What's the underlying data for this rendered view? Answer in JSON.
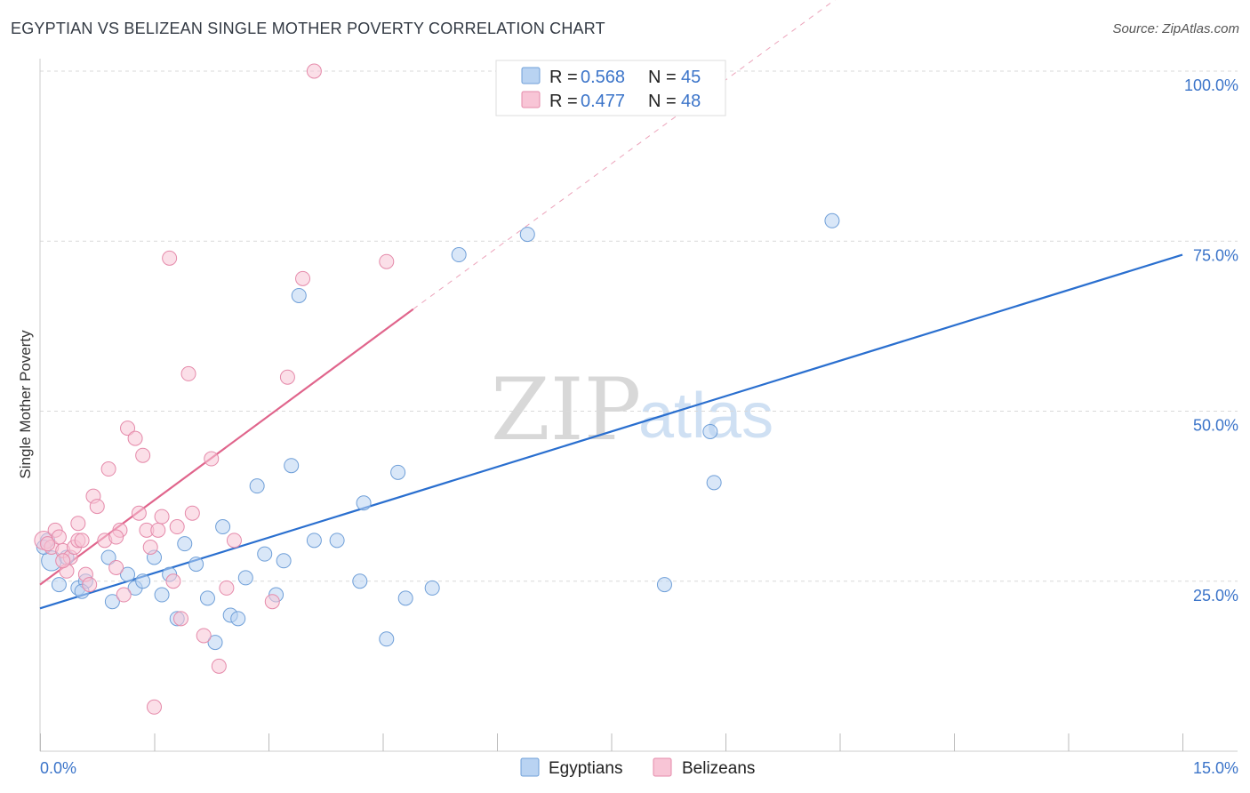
{
  "header": {
    "title": "EGYPTIAN VS BELIZEAN SINGLE MOTHER POVERTY CORRELATION CHART",
    "source": "Source: ZipAtlas.com"
  },
  "watermark": {
    "zip": "ZIP",
    "atlas": "atlas"
  },
  "colors": {
    "blue_fill": "#b9d3f2",
    "blue_stroke": "#6f9fd8",
    "blue_line": "#2a6fcf",
    "pink_fill": "#f8c5d6",
    "pink_stroke": "#e58aaa",
    "pink_line": "#e0658c",
    "grid": "#d9d9d9",
    "tick_text": "#3b74c9"
  },
  "legend": {
    "r_label": "R = ",
    "n_label": "N = ",
    "egyptians": {
      "r": "0.568",
      "n": "45"
    },
    "belizeans": {
      "r": "0.477",
      "n": "48"
    }
  },
  "bottom_legend": {
    "egyptians": "Egyptians",
    "belizeans": "Belizeans"
  },
  "chart_data": {
    "type": "scatter",
    "title": "EGYPTIAN VS BELIZEAN SINGLE MOTHER POVERTY CORRELATION CHART",
    "xlabel": "",
    "ylabel": "Single Mother Poverty",
    "xlim": [
      0,
      15
    ],
    "ylim": [
      0,
      100
    ],
    "x_tick_labels": [
      "0.0%",
      "15.0%"
    ],
    "y_ticks": [
      {
        "value": 25,
        "label": "25.0%"
      },
      {
        "value": 50,
        "label": "50.0%"
      },
      {
        "value": 75,
        "label": "75.0%"
      },
      {
        "value": 100,
        "label": "100.0%"
      }
    ],
    "series": [
      {
        "name": "Egyptians",
        "color": "blue",
        "trend": {
          "x0": 0,
          "y0": 21,
          "x1": 15,
          "y1": 73,
          "dashed_to": null
        },
        "points": [
          [
            0.1,
            31,
            1
          ],
          [
            0.15,
            28,
            1.4
          ],
          [
            0.35,
            28.5,
            1
          ],
          [
            0.25,
            24.5,
            1
          ],
          [
            0.5,
            24,
            1
          ],
          [
            0.6,
            25,
            1
          ],
          [
            0.55,
            23.5,
            1
          ],
          [
            0.9,
            28.5,
            1
          ],
          [
            0.95,
            22,
            1
          ],
          [
            1.15,
            26,
            1
          ],
          [
            1.25,
            24,
            1
          ],
          [
            1.35,
            25,
            1
          ],
          [
            1.5,
            28.5,
            1
          ],
          [
            1.6,
            23,
            1
          ],
          [
            1.7,
            26,
            1
          ],
          [
            1.8,
            19.5,
            1
          ],
          [
            1.9,
            30.5,
            1
          ],
          [
            2.05,
            27.5,
            1
          ],
          [
            2.2,
            22.5,
            1
          ],
          [
            2.3,
            16,
            1
          ],
          [
            2.4,
            33,
            1
          ],
          [
            2.5,
            20,
            1
          ],
          [
            2.6,
            19.5,
            1
          ],
          [
            2.7,
            25.5,
            1
          ],
          [
            2.85,
            39,
            1
          ],
          [
            2.95,
            29,
            1
          ],
          [
            3.1,
            23,
            1
          ],
          [
            3.2,
            28,
            1
          ],
          [
            3.3,
            42,
            1
          ],
          [
            3.4,
            67,
            1
          ],
          [
            3.6,
            31,
            1
          ],
          [
            3.9,
            31,
            1
          ],
          [
            4.2,
            25,
            1
          ],
          [
            4.25,
            36.5,
            1
          ],
          [
            4.55,
            16.5,
            1
          ],
          [
            4.7,
            41,
            1
          ],
          [
            4.8,
            22.5,
            1
          ],
          [
            5.15,
            24,
            1
          ],
          [
            5.5,
            73,
            1
          ],
          [
            6.4,
            76,
            1
          ],
          [
            8.2,
            24.5,
            1
          ],
          [
            8.8,
            47,
            1
          ],
          [
            8.85,
            39.5,
            1
          ],
          [
            10.4,
            78,
            1
          ],
          [
            0.05,
            30,
            1
          ]
        ]
      },
      {
        "name": "Belizeans",
        "color": "pink",
        "trend": {
          "x0": 0,
          "y0": 24.5,
          "x1": 4.9,
          "y1": 65,
          "dashed_to": [
            10.5,
            111
          ]
        },
        "points": [
          [
            0.05,
            31,
            1.3
          ],
          [
            0.15,
            30,
            1
          ],
          [
            0.2,
            32.5,
            1
          ],
          [
            0.3,
            29.5,
            1
          ],
          [
            0.35,
            26.5,
            1
          ],
          [
            0.4,
            28.5,
            1
          ],
          [
            0.45,
            30,
            1
          ],
          [
            0.5,
            31,
            1
          ],
          [
            0.5,
            33.5,
            1
          ],
          [
            0.6,
            26,
            1
          ],
          [
            0.65,
            24.5,
            1
          ],
          [
            0.7,
            37.5,
            1
          ],
          [
            0.75,
            36,
            1
          ],
          [
            0.85,
            31,
            1
          ],
          [
            0.9,
            41.5,
            1
          ],
          [
            1.0,
            27,
            1
          ],
          [
            1.05,
            32.5,
            1
          ],
          [
            1.1,
            23,
            1
          ],
          [
            1.15,
            47.5,
            1
          ],
          [
            1.25,
            46,
            1
          ],
          [
            1.3,
            35,
            1
          ],
          [
            1.35,
            43.5,
            1
          ],
          [
            1.4,
            32.5,
            1
          ],
          [
            1.45,
            30,
            1
          ],
          [
            1.5,
            6.5,
            1
          ],
          [
            1.55,
            32.5,
            1
          ],
          [
            1.6,
            34.5,
            1
          ],
          [
            1.7,
            72.5,
            1
          ],
          [
            1.75,
            25,
            1
          ],
          [
            1.8,
            33,
            1
          ],
          [
            1.85,
            19.5,
            1
          ],
          [
            1.95,
            55.5,
            1
          ],
          [
            2.0,
            35,
            1
          ],
          [
            2.15,
            17,
            1
          ],
          [
            2.25,
            43,
            1
          ],
          [
            2.35,
            12.5,
            1
          ],
          [
            2.45,
            24,
            1
          ],
          [
            2.55,
            31,
            1
          ],
          [
            3.05,
            22,
            1
          ],
          [
            3.25,
            55,
            1
          ],
          [
            3.45,
            69.5,
            1
          ],
          [
            3.6,
            100,
            1
          ],
          [
            4.55,
            72,
            1
          ],
          [
            0.25,
            31.5,
            1
          ],
          [
            0.1,
            30.5,
            1
          ],
          [
            0.55,
            31,
            1
          ],
          [
            1.0,
            31.5,
            1
          ],
          [
            0.3,
            28,
            1
          ]
        ]
      }
    ]
  }
}
